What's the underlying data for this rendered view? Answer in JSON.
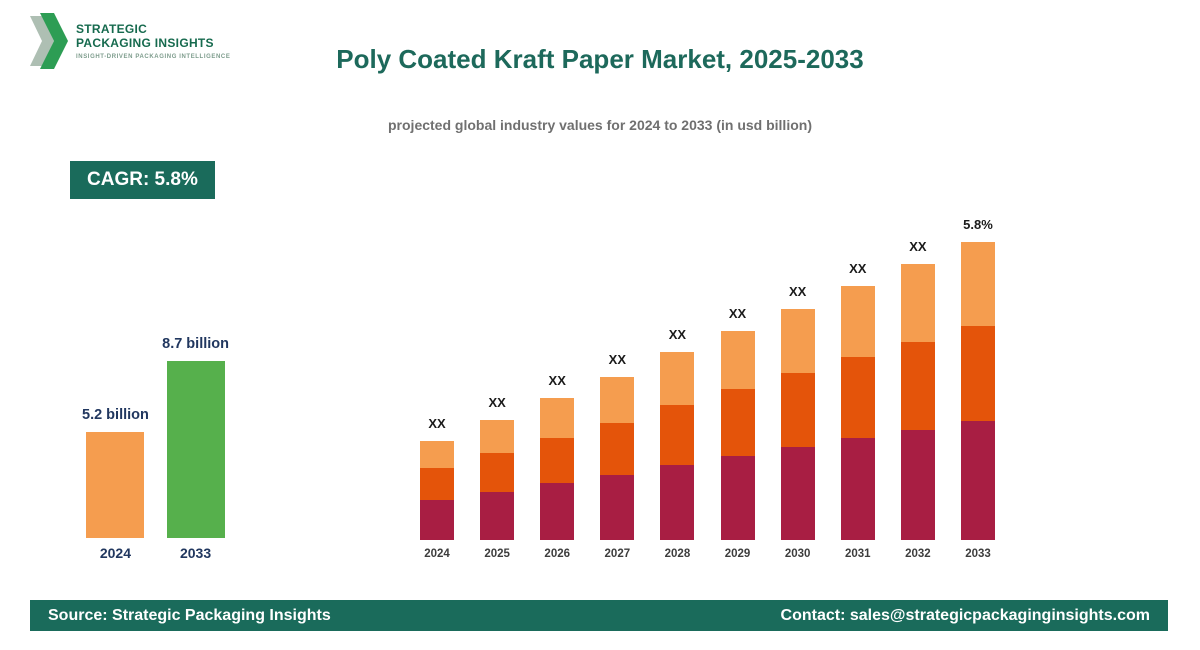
{
  "logo": {
    "icon": "double-chevron-right-icon",
    "line1": "STRATEGIC",
    "line2": "PACKAGING INSIGHTS",
    "tagline": "INSIGHT-DRIVEN PACKAGING INTELLIGENCE"
  },
  "header": {
    "title": "Poly Coated Kraft Paper Market, 2025-2033",
    "subtitle": "projected global industry values for 2024 to 2033 (in usd billion)"
  },
  "cagr_badge": {
    "label": "CAGR: 5.8%"
  },
  "colors": {
    "teal": "#1a6b5b",
    "navy_label": "#21375f",
    "orange_light": "#f59d4f",
    "orange_dark": "#e4540a",
    "maroon": "#a81e43",
    "green": "#56b04c"
  },
  "chart_data": [
    {
      "type": "bar",
      "title": "Market size 2024 vs 2033",
      "categories": [
        "2024",
        "2033"
      ],
      "values": [
        5.2,
        8.7
      ],
      "labels": [
        "5.2 billion",
        "8.7 billion"
      ],
      "colors": [
        "#f59d4f",
        "#56b04c"
      ],
      "ylim": [
        0,
        8.7
      ],
      "grid": false,
      "legend": false
    },
    {
      "type": "stacked-bar",
      "title": "Projected global industry values 2024-2033",
      "categories": [
        "2024",
        "2025",
        "2026",
        "2027",
        "2028",
        "2029",
        "2030",
        "2031",
        "2032",
        "2033"
      ],
      "bar_labels": [
        "XX",
        "XX",
        "XX",
        "XX",
        "XX",
        "XX",
        "XX",
        "XX",
        "XX",
        "5.8%"
      ],
      "series": [
        {
          "name": "bottom",
          "color": "#a81e43",
          "values": [
            40,
            48,
            57,
            65,
            75,
            84,
            93,
            102,
            110,
            119
          ]
        },
        {
          "name": "middle",
          "color": "#e4540a",
          "values": [
            32,
            39,
            45,
            52,
            60,
            67,
            74,
            81,
            88,
            95
          ]
        },
        {
          "name": "top",
          "color": "#f59d4f",
          "values": [
            27,
            33,
            40,
            46,
            53,
            58,
            64,
            71,
            78,
            84
          ]
        }
      ],
      "grid": false,
      "legend": false
    }
  ],
  "footer": {
    "source": "Source: Strategic Packaging Insights",
    "contact": "Contact: sales@strategicpackaginginsights.com"
  }
}
